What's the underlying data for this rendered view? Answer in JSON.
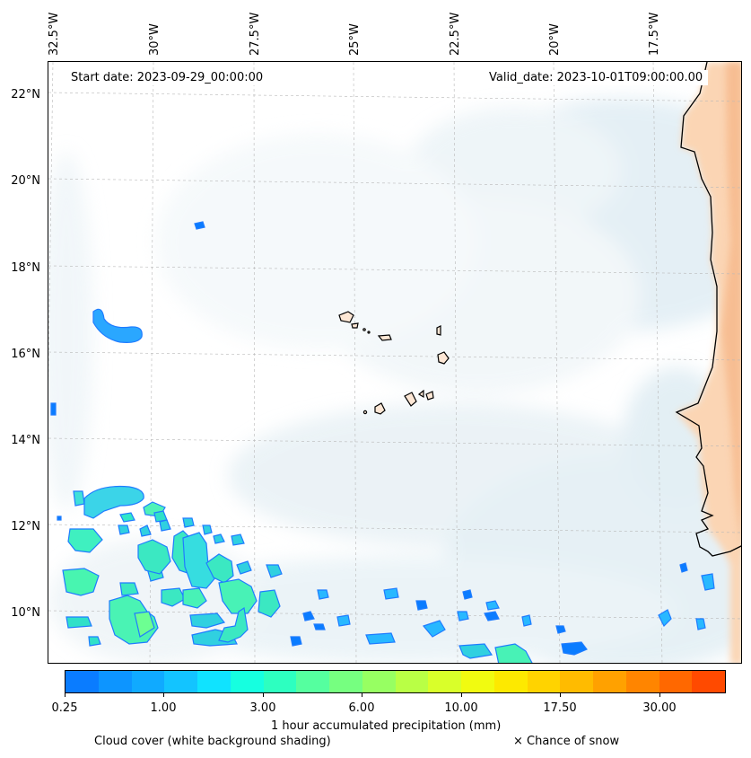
{
  "lon_labels": [
    "32.5°W",
    "30°W",
    "27.5°W",
    "25°W",
    "22.5°W",
    "20°W",
    "17.5°W"
  ],
  "lat_labels": [
    "22°N",
    "20°N",
    "18°N",
    "16°N",
    "14°N",
    "12°N",
    "10°N"
  ],
  "start_date": "Start date: 2023-09-29_00:00:00",
  "valid_date": "Valid_date: 2023-10-01T09:00:00.00",
  "colorbar": {
    "colors": [
      "#0a7cff",
      "#0d95ff",
      "#10aaff",
      "#13c4ff",
      "#10e3ff",
      "#16ffe0",
      "#2dffc0",
      "#55ff9f",
      "#76ff80",
      "#97ff62",
      "#b9ff45",
      "#d9ff2a",
      "#f1fb10",
      "#fde900",
      "#ffd300",
      "#ffbb00",
      "#ffa100",
      "#ff8500",
      "#ff6800",
      "#ff4a00"
    ],
    "tick_labels": [
      "0.25",
      "1.00",
      "3.00",
      "6.00",
      "10.00",
      "17.50",
      "30.00"
    ],
    "label": "1 hour accumulated precipitation (mm)"
  },
  "legend": {
    "cloud_cover": "Cloud cover (white background shading)",
    "snow": "× Chance of snow"
  }
}
